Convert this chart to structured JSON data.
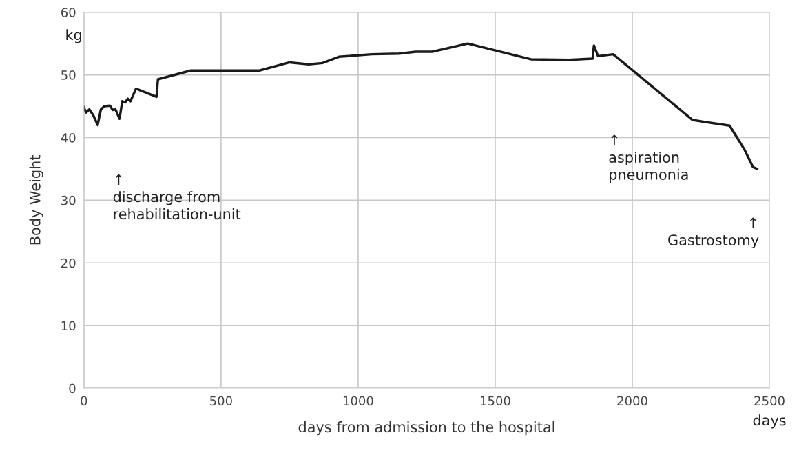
{
  "chart_data": {
    "type": "line",
    "xlabel": "days from admission to the hospital",
    "ylabel": "Body Weight",
    "x": [
      0,
      8,
      20,
      35,
      50,
      62,
      75,
      95,
      105,
      115,
      130,
      140,
      150,
      160,
      170,
      190,
      265,
      270,
      390,
      640,
      750,
      820,
      870,
      930,
      1050,
      1150,
      1210,
      1270,
      1400,
      1630,
      1770,
      1855,
      1860,
      1875,
      1930,
      2220,
      2355,
      2410,
      2440,
      2455
    ],
    "series": [
      {
        "color": "#1a1a1a",
        "values": [
          44.8,
          44.0,
          44.5,
          43.5,
          42.0,
          44.5,
          45.0,
          45.1,
          44.4,
          44.5,
          43.0,
          45.8,
          45.6,
          46.2,
          45.8,
          47.8,
          46.5,
          49.3,
          50.7,
          50.7,
          52.0,
          51.7,
          51.9,
          52.9,
          53.3,
          53.4,
          53.7,
          53.7,
          55.0,
          52.5,
          52.4,
          52.6,
          54.7,
          53.0,
          53.3,
          42.8,
          41.9,
          38.0,
          35.3,
          35.0
        ]
      }
    ],
    "xlim": [
      0,
      2500
    ],
    "ylim": [
      0,
      60
    ],
    "xticks": [
      0,
      500,
      1000,
      1500,
      2000,
      2500
    ],
    "yticks": [
      0,
      10,
      20,
      30,
      40,
      50,
      60
    ],
    "grid": true,
    "marker": "none",
    "line_style": "solid",
    "legend": false,
    "annotations": [
      "kg",
      "days",
      "↑\ndischarge from\nrehabilitation-unit",
      "↑\naspiration\npneumonia",
      "↑\nGastrostomy"
    ]
  }
}
